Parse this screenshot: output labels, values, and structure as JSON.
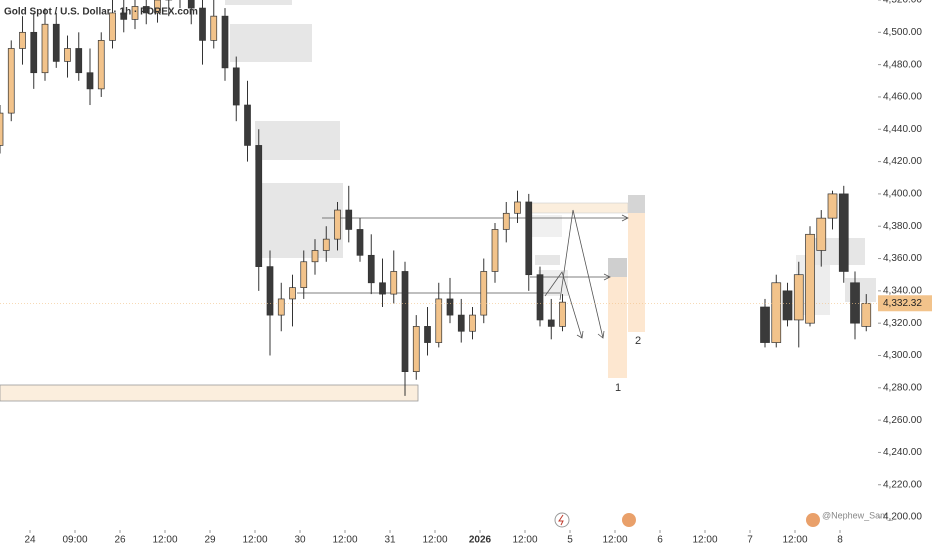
{
  "chart_data": {
    "type": "candlestick",
    "title": "Gold Spot / U.S. Dollar · 1h · FOREX.com",
    "annotations": [
      "1",
      "2"
    ],
    "watermark": "@Nephew_Sam_",
    "up_color": "#f2c38b",
    "down_color": "#3a3a3a",
    "xlim": [
      -8,
      226.13
    ],
    "ylim": [
      4192,
      4520
    ],
    "yticks": [
      {
        "value": 4200,
        "label": "4,200.00"
      },
      {
        "value": 4220,
        "label": "4,220.00"
      },
      {
        "value": 4240,
        "label": "4,240.00"
      },
      {
        "value": 4260,
        "label": "4,260.00"
      },
      {
        "value": 4280,
        "label": "4,280.00"
      },
      {
        "value": 4300,
        "label": "4,300.00"
      },
      {
        "value": 4320,
        "label": "4,320.00"
      },
      {
        "value": 4340,
        "label": "4,340.00"
      },
      {
        "value": 4360,
        "label": "4,360.00"
      },
      {
        "value": 4380,
        "label": "4,380.00"
      },
      {
        "value": 4400,
        "label": "4,400.00"
      },
      {
        "value": 4420,
        "label": "4,420.00"
      },
      {
        "value": 4440,
        "label": "4,440.00"
      },
      {
        "value": 4460,
        "label": "4,460.00"
      },
      {
        "value": 4480,
        "label": "4,480.00"
      },
      {
        "value": 4500,
        "label": "4,500.00"
      },
      {
        "value": 4520,
        "label": "4,520.00"
      }
    ],
    "xticks": [
      {
        "value": 0,
        "label": "24"
      },
      {
        "value": 12,
        "label": "09:00"
      },
      {
        "value": 24,
        "label": "26"
      },
      {
        "value": 36,
        "label": "12:00"
      },
      {
        "value": 48,
        "label": "29"
      },
      {
        "value": 60,
        "label": "12:00"
      },
      {
        "value": 72,
        "label": "30"
      },
      {
        "value": 84,
        "label": "12:00"
      },
      {
        "value": 96,
        "label": "31"
      },
      {
        "value": 108,
        "label": "12:00"
      },
      {
        "value": 120,
        "label": "2026"
      },
      {
        "value": 132,
        "label": "12:00"
      },
      {
        "value": 144,
        "label": "5"
      },
      {
        "value": 156,
        "label": "12:00"
      },
      {
        "value": 168,
        "label": "6"
      },
      {
        "value": 180,
        "label": "12:00"
      },
      {
        "value": 192,
        "label": "7"
      },
      {
        "value": 204,
        "label": "12:00"
      },
      {
        "value": 216,
        "label": "8"
      }
    ],
    "last_price": {
      "value": 4332.32,
      "label": "4,332.32"
    },
    "x": [
      -8,
      -5,
      -2,
      1,
      4,
      7,
      10,
      13,
      16,
      19,
      22,
      25,
      28,
      31,
      34,
      37,
      40,
      43,
      46,
      49,
      52,
      55,
      58,
      61,
      64,
      67,
      70,
      73,
      76,
      79,
      82,
      85,
      88,
      91,
      94,
      97,
      100,
      103,
      106,
      109,
      112,
      115,
      118,
      121,
      124,
      127,
      130,
      133,
      136,
      139,
      142,
      196,
      199,
      202,
      205,
      208,
      211,
      214,
      217,
      220,
      223
    ],
    "open": [
      4430,
      4450,
      4490,
      4500,
      4475,
      4505,
      4482,
      4490,
      4475,
      4465,
      4495,
      4512,
      4508,
      4516,
      4512,
      4520,
      4522,
      4525,
      4515,
      4495,
      4510,
      4478,
      4455,
      4430,
      4355,
      4325,
      4335,
      4342,
      4358,
      4365,
      4372,
      4390,
      4378,
      4362,
      4345,
      4338,
      4352,
      4290,
      4318,
      4308,
      4335,
      4325,
      4315,
      4325,
      4352,
      4378,
      4388,
      4395,
      4350,
      4322,
      4318,
      4330,
      4308,
      4340,
      4322,
      4320,
      4365,
      4385,
      4400,
      4345,
      4318
    ],
    "high": [
      4455,
      4495,
      4510,
      4512,
      4515,
      4512,
      4498,
      4500,
      4490,
      4500,
      4520,
      4525,
      4522,
      4525,
      4524,
      4530,
      4530,
      4530,
      4522,
      4520,
      4515,
      4485,
      4470,
      4440,
      4365,
      4345,
      4350,
      4365,
      4372,
      4380,
      4395,
      4405,
      4385,
      4375,
      4360,
      4365,
      4358,
      4325,
      4330,
      4345,
      4348,
      4335,
      4330,
      4360,
      4382,
      4395,
      4402,
      4400,
      4355,
      4335,
      4338,
      4335,
      4350,
      4345,
      4358,
      4380,
      4390,
      4402,
      4405,
      4352,
      4338
    ],
    "low": [
      4425,
      4445,
      4480,
      4465,
      4470,
      4478,
      4472,
      4470,
      4455,
      4460,
      4490,
      4500,
      4502,
      4505,
      4506,
      4510,
      4515,
      4505,
      4480,
      4490,
      4470,
      4445,
      4420,
      4340,
      4300,
      4315,
      4318,
      4335,
      4350,
      4358,
      4365,
      4370,
      4358,
      4338,
      4330,
      4332,
      4275,
      4285,
      4300,
      4305,
      4320,
      4308,
      4310,
      4320,
      4345,
      4370,
      4382,
      4340,
      4318,
      4310,
      4315,
      4305,
      4305,
      4318,
      4305,
      4318,
      4355,
      4378,
      4345,
      4310,
      4315
    ],
    "close": [
      4450,
      4490,
      4500,
      4475,
      4505,
      4482,
      4490,
      4475,
      4465,
      4495,
      4512,
      4508,
      4516,
      4512,
      4520,
      4522,
      4525,
      4515,
      4495,
      4510,
      4478,
      4455,
      4430,
      4355,
      4325,
      4335,
      4342,
      4358,
      4365,
      4372,
      4390,
      4378,
      4362,
      4345,
      4338,
      4352,
      4290,
      4318,
      4308,
      4335,
      4325,
      4315,
      4325,
      4352,
      4378,
      4388,
      4395,
      4350,
      4322,
      4318,
      4333,
      4308,
      4345,
      4322,
      4350,
      4375,
      4385,
      4400,
      4352,
      4320,
      4332.32
    ]
  }
}
